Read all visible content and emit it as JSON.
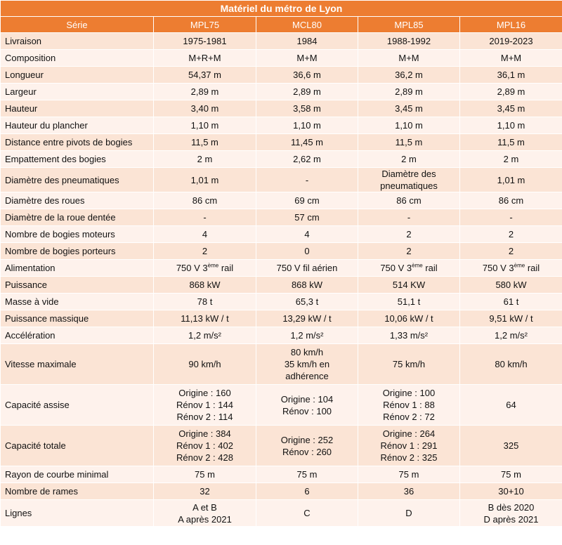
{
  "title": "Matériel du métro de Lyon",
  "header": [
    "Série",
    "MPL75",
    "MCL80",
    "MPL85",
    "MPL16"
  ],
  "rows": [
    {
      "label": "Livraison",
      "values": [
        [
          "1975-1981"
        ],
        [
          "1984"
        ],
        [
          "1988-1992"
        ],
        [
          "2019-2023"
        ]
      ]
    },
    {
      "label": "Composition",
      "values": [
        [
          "M+R+M"
        ],
        [
          "M+M"
        ],
        [
          "M+M"
        ],
        [
          "M+M"
        ]
      ]
    },
    {
      "label": "Longueur",
      "values": [
        [
          "54,37 m"
        ],
        [
          "36,6 m"
        ],
        [
          "36,2 m"
        ],
        [
          "36,1 m"
        ]
      ]
    },
    {
      "label": "Largeur",
      "values": [
        [
          "2,89 m"
        ],
        [
          "2,89 m"
        ],
        [
          "2,89 m"
        ],
        [
          "2,89 m"
        ]
      ]
    },
    {
      "label": "Hauteur",
      "values": [
        [
          "3,40 m"
        ],
        [
          "3,58 m"
        ],
        [
          "3,45 m"
        ],
        [
          "3,45 m"
        ]
      ]
    },
    {
      "label": "Hauteur du plancher",
      "values": [
        [
          "1,10 m"
        ],
        [
          "1,10 m"
        ],
        [
          "1,10 m"
        ],
        [
          "1,10 m"
        ]
      ]
    },
    {
      "label": "Distance entre pivots de bogies",
      "values": [
        [
          "11,5 m"
        ],
        [
          "11,45 m"
        ],
        [
          "11,5 m"
        ],
        [
          "11,5 m"
        ]
      ]
    },
    {
      "label": "Empattement des bogies",
      "values": [
        [
          "2 m"
        ],
        [
          "2,62 m"
        ],
        [
          "2 m"
        ],
        [
          "2 m"
        ]
      ]
    },
    {
      "label": "Diamètre des pneumatiques",
      "values": [
        [
          "1,01 m"
        ],
        [
          "-"
        ],
        [
          "Diamètre des",
          "pneumatiques"
        ],
        [
          "1,01 m"
        ]
      ]
    },
    {
      "label": "Diamètre des roues",
      "values": [
        [
          "86 cm"
        ],
        [
          "69  cm"
        ],
        [
          "86 cm"
        ],
        [
          "86 cm"
        ]
      ]
    },
    {
      "label": "Diamètre de la roue dentée",
      "values": [
        [
          "-"
        ],
        [
          "57 cm"
        ],
        [
          "-"
        ],
        [
          "-"
        ]
      ]
    },
    {
      "label": "Nombre de bogies moteurs",
      "values": [
        [
          "4"
        ],
        [
          "4"
        ],
        [
          "2"
        ],
        [
          "2"
        ]
      ]
    },
    {
      "label": "Nombre de bogies porteurs",
      "values": [
        [
          "2"
        ],
        [
          "0"
        ],
        [
          "2"
        ],
        [
          "2"
        ]
      ]
    },
    {
      "label": "Alimentation",
      "values": [
        [
          {
            "pre": "750 V 3",
            "sup": "ème",
            "post": " rail"
          }
        ],
        [
          "750 V fil aérien"
        ],
        [
          {
            "pre": "750 V 3",
            "sup": "ème",
            "post": " rail"
          }
        ],
        [
          {
            "pre": "750 V 3",
            "sup": "ème",
            "post": " rail"
          }
        ]
      ]
    },
    {
      "label": "Puissance",
      "values": [
        [
          "868 kW"
        ],
        [
          "868 kW"
        ],
        [
          "514 KW"
        ],
        [
          "580 kW"
        ]
      ]
    },
    {
      "label": "Masse à vide",
      "values": [
        [
          "78 t"
        ],
        [
          "65,3 t"
        ],
        [
          "51,1 t"
        ],
        [
          "61 t"
        ]
      ]
    },
    {
      "label": "Puissance massique",
      "values": [
        [
          "11,13 kW / t"
        ],
        [
          "13,29 kW / t"
        ],
        [
          "10,06 kW / t"
        ],
        [
          "9,51 kW / t"
        ]
      ]
    },
    {
      "label": "Accélération",
      "values": [
        [
          "1,2 m/s²"
        ],
        [
          "1,2 m/s²"
        ],
        [
          "1,33 m/s²"
        ],
        [
          "1,2 m/s²"
        ]
      ]
    },
    {
      "label": "Vitesse maximale",
      "values": [
        [
          "90 km/h"
        ],
        [
          "80 km/h",
          "35 km/h en",
          "adhérence"
        ],
        [
          "75 km/h"
        ],
        [
          "80 km/h"
        ]
      ]
    },
    {
      "label": "Capacité assise",
      "values": [
        [
          "Origine : 160",
          "Rénov 1 : 144",
          "Rénov 2 : 114"
        ],
        [
          "Origine : 104",
          "Rénov : 100"
        ],
        [
          "Origine : 100",
          "Rénov 1 : 88",
          "Rénov 2 : 72"
        ],
        [
          "64"
        ]
      ]
    },
    {
      "label": "Capacité totale",
      "values": [
        [
          "Origine : 384",
          "Rénov 1 : 402",
          "Rénov 2 : 428"
        ],
        [
          "Origine : 252",
          "Rénov : 260"
        ],
        [
          "Origine : 264",
          "Rénov 1 : 291",
          "Rénov 2 : 325"
        ],
        [
          "325"
        ]
      ]
    },
    {
      "label": "Rayon de courbe minimal",
      "values": [
        [
          "75 m"
        ],
        [
          "75 m"
        ],
        [
          "75 m"
        ],
        [
          "75 m"
        ]
      ]
    },
    {
      "label": "Nombre de rames",
      "values": [
        [
          "32"
        ],
        [
          "6"
        ],
        [
          "36"
        ],
        [
          "30+10"
        ]
      ]
    },
    {
      "label": "Lignes",
      "values": [
        [
          "A et B",
          "A après  2021"
        ],
        [
          "C"
        ],
        [
          "D"
        ],
        [
          "B dès 2020",
          "D après 2021"
        ]
      ]
    }
  ]
}
